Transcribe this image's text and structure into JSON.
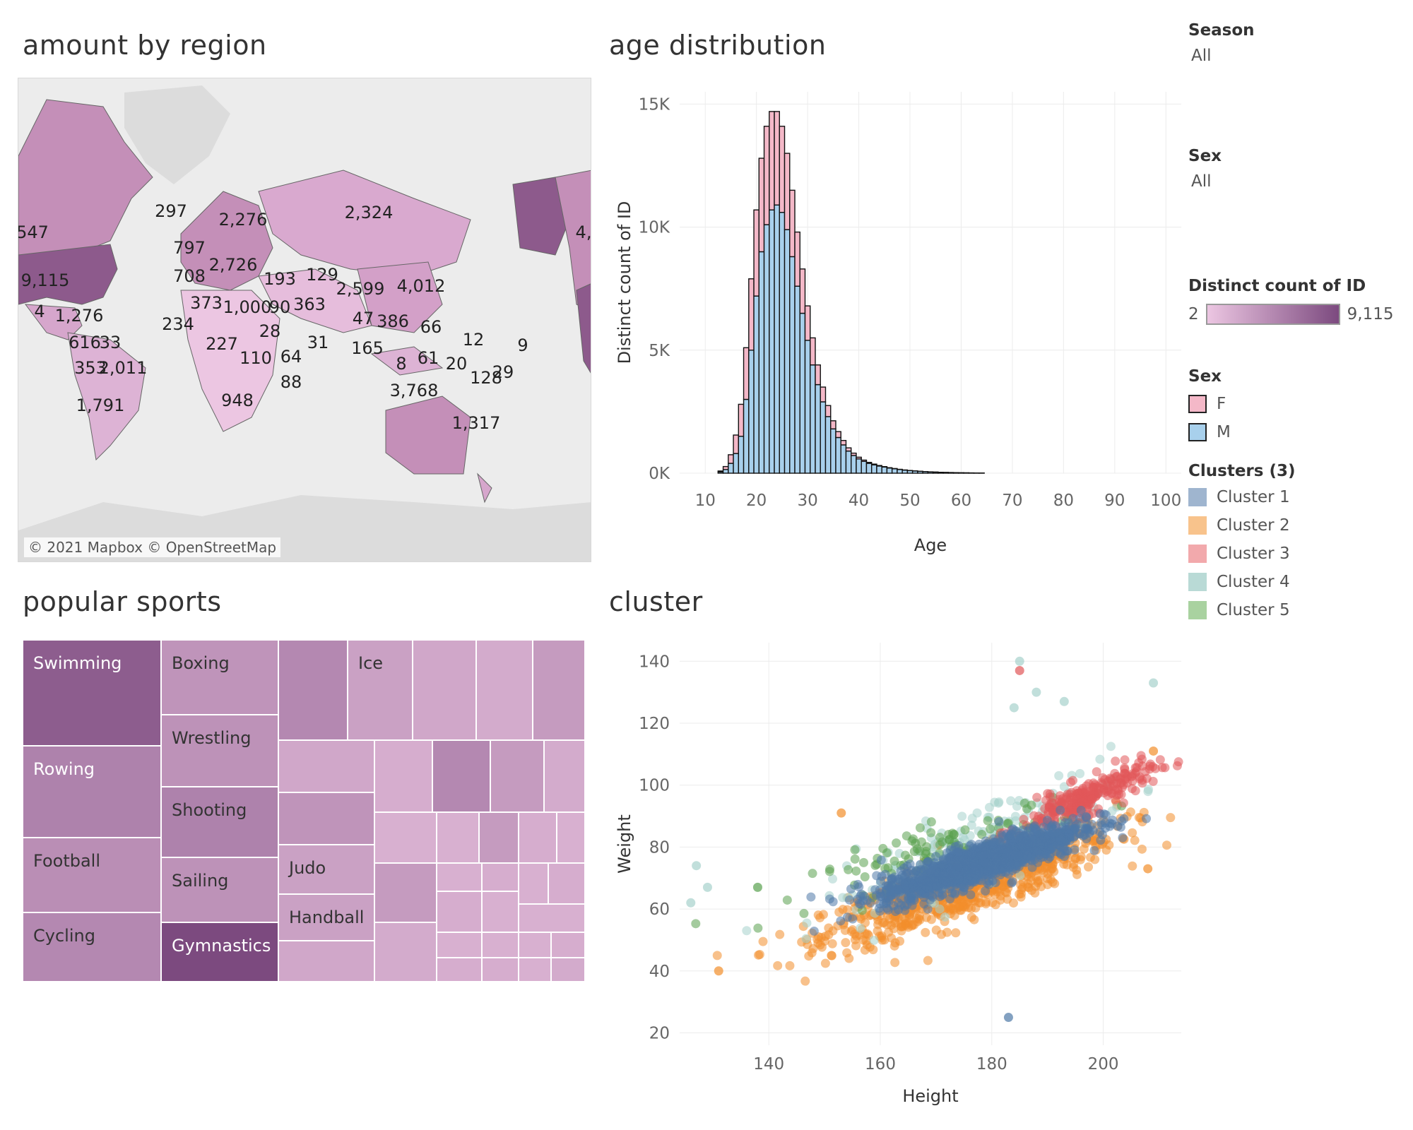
{
  "titles": {
    "map": "amount by region",
    "age": "age distribution",
    "sports": "popular sports",
    "cluster": "cluster"
  },
  "filters": {
    "season": {
      "label": "Season",
      "value": "All"
    },
    "sex": {
      "label": "Sex",
      "value": "All"
    }
  },
  "legends": {
    "distinct_count": {
      "label": "Distinct count of ID",
      "min": "2",
      "max": "9,115"
    },
    "sex": {
      "label": "Sex",
      "items": [
        {
          "name": "F",
          "color": "#f4b8c8"
        },
        {
          "name": "M",
          "color": "#a8d0ec"
        }
      ]
    },
    "clusters": {
      "label": "Clusters (3)",
      "items": [
        {
          "name": "Cluster 1",
          "color": "#9fb5cf"
        },
        {
          "name": "Cluster 2",
          "color": "#f8c38c"
        },
        {
          "name": "Cluster 3",
          "color": "#f2a9ac"
        },
        {
          "name": "Cluster 4",
          "color": "#b9dad6"
        },
        {
          "name": "Cluster 5",
          "color": "#a9d2a0"
        }
      ]
    }
  },
  "map": {
    "attribution": "© 2021 Mapbox © OpenStreetMap",
    "labels": [
      "547",
      "9,115",
      "4",
      "1,276",
      "616",
      "33",
      "353",
      "2,011",
      "1,791",
      "297",
      "797",
      "2,276",
      "708",
      "2,726",
      "373",
      "1,000",
      "90",
      "363",
      "193",
      "129",
      "2,324",
      "2,599",
      "4,012",
      "47",
      "386",
      "66",
      "234",
      "227",
      "28",
      "31",
      "165",
      "12",
      "9",
      "110",
      "64",
      "88",
      "948",
      "8",
      "61",
      "20",
      "128",
      "29",
      "3,768",
      "1,317",
      "4,"
    ]
  },
  "chart_data": [
    {
      "type": "bar",
      "title": "age distribution",
      "xlabel": "Age",
      "ylabel": "Distinct count of ID",
      "x_ticks": [
        10,
        20,
        30,
        40,
        50,
        60,
        70,
        80,
        90,
        100
      ],
      "y_ticks": [
        "0K",
        "5K",
        "10K",
        "15K"
      ],
      "ylim": [
        0,
        15500
      ],
      "stacked": true,
      "x": [
        13,
        14,
        15,
        16,
        17,
        18,
        19,
        20,
        21,
        22,
        23,
        24,
        25,
        26,
        27,
        28,
        29,
        30,
        31,
        32,
        33,
        34,
        35,
        36,
        37,
        38,
        39,
        40,
        41,
        42,
        43,
        44,
        45,
        46,
        47,
        48,
        49,
        50,
        51,
        52,
        53,
        54,
        55,
        56,
        57,
        58,
        59,
        60,
        61,
        62,
        63,
        64
      ],
      "series": [
        {
          "name": "M",
          "values": [
            50,
            150,
            400,
            800,
            1500,
            3000,
            5000,
            7200,
            9000,
            10100,
            10700,
            10900,
            10600,
            9900,
            8800,
            7600,
            6500,
            5400,
            4400,
            3600,
            2900,
            2300,
            1800,
            1450,
            1150,
            900,
            720,
            580,
            480,
            400,
            340,
            290,
            250,
            210,
            180,
            150,
            125,
            105,
            90,
            75,
            62,
            52,
            44,
            36,
            30,
            25,
            20,
            16,
            13,
            10,
            8,
            6
          ]
        },
        {
          "name": "F",
          "values": [
            40,
            120,
            350,
            750,
            1300,
            2100,
            2900,
            3500,
            3800,
            4000,
            4000,
            3800,
            3500,
            3100,
            2700,
            2200,
            1800,
            1400,
            1100,
            800,
            600,
            450,
            330,
            240,
            180,
            130,
            95,
            70,
            52,
            40,
            30,
            23,
            17,
            13,
            10,
            8,
            6,
            5,
            4,
            3,
            3,
            2,
            2,
            1,
            1,
            1,
            1,
            1,
            1,
            1,
            1,
            1
          ]
        }
      ]
    },
    {
      "type": "scatter",
      "title": "cluster",
      "xlabel": "Height",
      "ylabel": "Weight",
      "x_ticks": [
        140,
        160,
        180,
        200
      ],
      "y_ticks": [
        20,
        40,
        60,
        80,
        100,
        120,
        140
      ],
      "xlim": [
        124,
        214
      ],
      "ylim": [
        16,
        146
      ],
      "cluster_colors": [
        "#4e79a7",
        "#f28e2b",
        "#e15759",
        "#a6d2cc",
        "#59a14f"
      ],
      "clusters": [
        {
          "name": "Cluster 1",
          "center": [
            178,
            75
          ],
          "spread": [
            9,
            7
          ],
          "n": 1300
        },
        {
          "name": "Cluster 2",
          "center": [
            176,
            68
          ],
          "spread": [
            13,
            11
          ],
          "n": 900
        },
        {
          "name": "Cluster 3",
          "center": [
            197,
            96
          ],
          "spread": [
            6,
            6
          ],
          "n": 250
        },
        {
          "name": "Cluster 4",
          "center": [
            178,
            82
          ],
          "spread": [
            14,
            14
          ],
          "n": 160
        },
        {
          "name": "Cluster 5",
          "center": [
            172,
            80
          ],
          "spread": [
            12,
            9
          ],
          "n": 100
        }
      ],
      "outliers": [
        {
          "x": 185,
          "y": 140,
          "c": 3
        },
        {
          "x": 185,
          "y": 137,
          "c": 2
        },
        {
          "x": 188,
          "y": 130,
          "c": 3
        },
        {
          "x": 193,
          "y": 127,
          "c": 3
        },
        {
          "x": 209,
          "y": 133,
          "c": 3
        },
        {
          "x": 184,
          "y": 125,
          "c": 3
        },
        {
          "x": 127,
          "y": 74,
          "c": 3
        },
        {
          "x": 126,
          "y": 62,
          "c": 3
        },
        {
          "x": 138,
          "y": 67,
          "c": 4
        },
        {
          "x": 131,
          "y": 40,
          "c": 1
        },
        {
          "x": 183,
          "y": 25,
          "c": 0
        },
        {
          "x": 129,
          "y": 67,
          "c": 3
        },
        {
          "x": 209,
          "y": 111,
          "c": 1
        },
        {
          "x": 208,
          "y": 73,
          "c": 1
        },
        {
          "x": 153,
          "y": 91,
          "c": 1
        }
      ]
    },
    {
      "type": "treemap",
      "title": "popular sports",
      "cells": [
        {
          "name": "Swimming",
          "shade": 0.85,
          "label": true
        },
        {
          "name": "Rowing",
          "shade": 0.55,
          "label": true
        },
        {
          "name": "Football",
          "shade": 0.45,
          "label": true
        },
        {
          "name": "Cycling",
          "shade": 0.5,
          "label": true
        },
        {
          "name": "Boxing",
          "shade": 0.4,
          "label": true
        },
        {
          "name": "Wrestling",
          "shade": 0.42,
          "label": true
        },
        {
          "name": "Shooting",
          "shade": 0.55,
          "label": true
        },
        {
          "name": "Sailing",
          "shade": 0.42,
          "label": true
        },
        {
          "name": "Gymnastics",
          "shade": 1.0,
          "label": true
        },
        {
          "name": "Judo",
          "shade": 0.3,
          "label": true
        },
        {
          "name": "Handball",
          "shade": 0.3,
          "label": true
        },
        {
          "name": "Ice",
          "shade": 0.3,
          "label": true
        }
      ]
    }
  ]
}
